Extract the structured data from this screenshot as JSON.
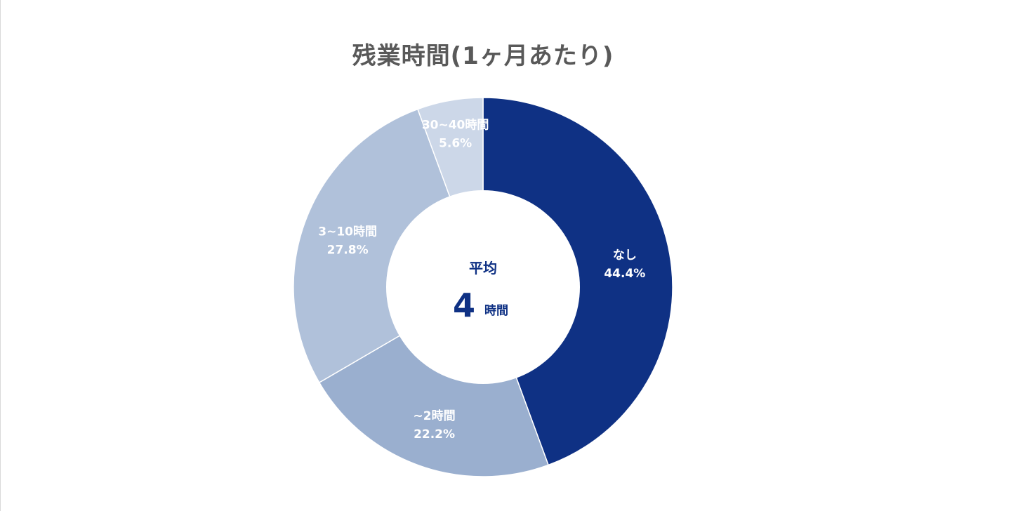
{
  "title": "残業時間(1ヶ月あたり)",
  "center": {
    "label": "平均",
    "value": "4",
    "unit": "時間"
  },
  "colors": {
    "title": "#595959",
    "center_text": "#0f3184",
    "slice_text": "#ffffff"
  },
  "chart_data": {
    "type": "pie",
    "donut": true,
    "title": "残業時間(1ヶ月あたり)",
    "slices": [
      {
        "label": "なし",
        "value": 44.4,
        "value_label": "44.4%",
        "color": "#0f3184"
      },
      {
        "label": "~2時間",
        "value": 22.2,
        "value_label": "22.2%",
        "color": "#9aafcf"
      },
      {
        "label": "3~10時間",
        "value": 27.8,
        "value_label": "27.8%",
        "color": "#b0c1da"
      },
      {
        "label": "30~40時間",
        "value": 5.6,
        "value_label": "5.6%",
        "color": "#ccd7e8"
      }
    ],
    "start_angle": "12 o'clock",
    "direction": "clockwise",
    "legend": "none"
  }
}
